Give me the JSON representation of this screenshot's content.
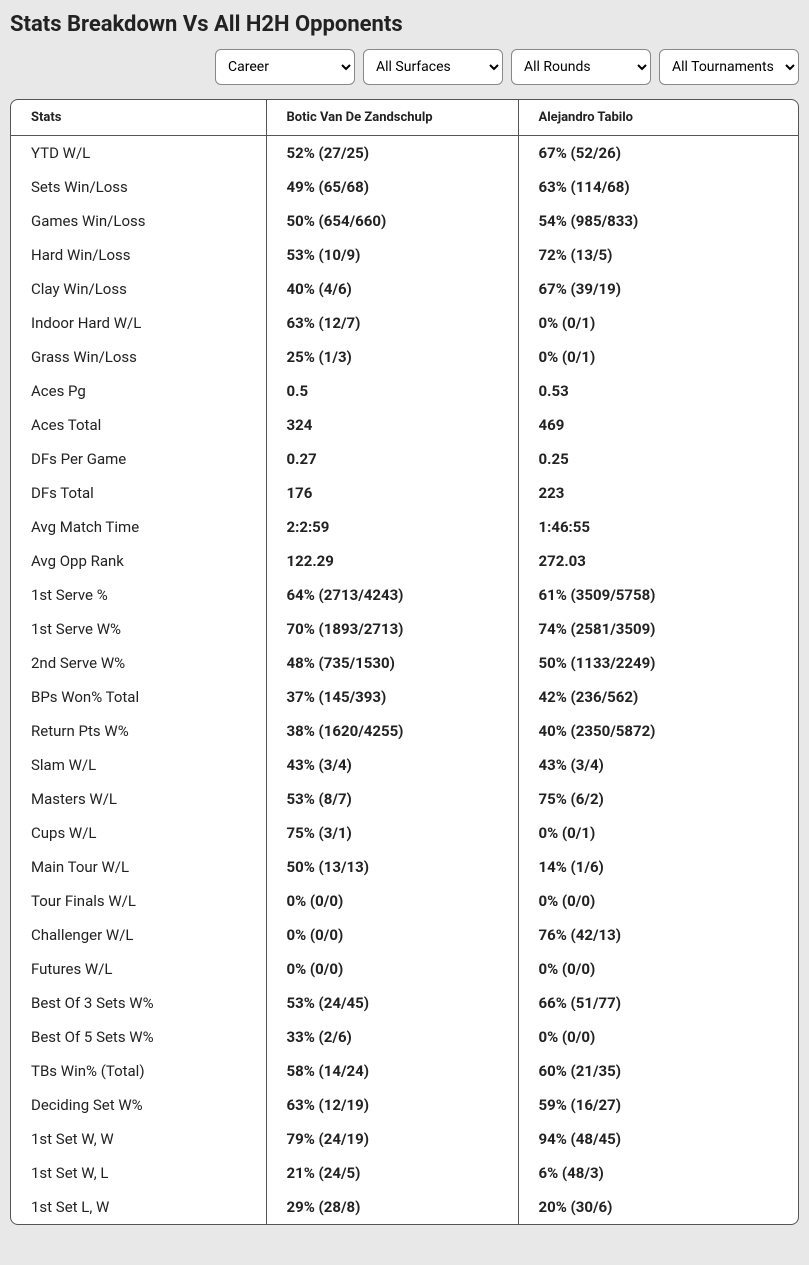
{
  "title": "Stats Breakdown Vs All H2H Opponents",
  "filters": {
    "period": "Career",
    "surface": "All Surfaces",
    "round": "All Rounds",
    "tournament": "All Tournaments"
  },
  "columns": {
    "stats": "Stats",
    "player1": "Botic Van De Zandschulp",
    "player2": "Alejandro Tabilo"
  },
  "rows": [
    {
      "label": "YTD W/L",
      "p1": "52% (27/25)",
      "p2": "67% (52/26)"
    },
    {
      "label": "Sets Win/Loss",
      "p1": "49% (65/68)",
      "p2": "63% (114/68)"
    },
    {
      "label": "Games Win/Loss",
      "p1": "50% (654/660)",
      "p2": "54% (985/833)"
    },
    {
      "label": "Hard Win/Loss",
      "p1": "53% (10/9)",
      "p2": "72% (13/5)"
    },
    {
      "label": "Clay Win/Loss",
      "p1": "40% (4/6)",
      "p2": "67% (39/19)"
    },
    {
      "label": "Indoor Hard W/L",
      "p1": "63% (12/7)",
      "p2": "0% (0/1)"
    },
    {
      "label": "Grass Win/Loss",
      "p1": "25% (1/3)",
      "p2": "0% (0/1)"
    },
    {
      "label": "Aces Pg",
      "p1": "0.5",
      "p2": "0.53"
    },
    {
      "label": "Aces Total",
      "p1": "324",
      "p2": "469"
    },
    {
      "label": "DFs Per Game",
      "p1": "0.27",
      "p2": "0.25"
    },
    {
      "label": "DFs Total",
      "p1": "176",
      "p2": "223"
    },
    {
      "label": "Avg Match Time",
      "p1": "2:2:59",
      "p2": "1:46:55"
    },
    {
      "label": "Avg Opp Rank",
      "p1": "122.29",
      "p2": "272.03"
    },
    {
      "label": "1st Serve %",
      "p1": "64% (2713/4243)",
      "p2": "61% (3509/5758)"
    },
    {
      "label": "1st Serve W%",
      "p1": "70% (1893/2713)",
      "p2": "74% (2581/3509)"
    },
    {
      "label": "2nd Serve W%",
      "p1": "48% (735/1530)",
      "p2": "50% (1133/2249)"
    },
    {
      "label": "BPs Won% Total",
      "p1": "37% (145/393)",
      "p2": "42% (236/562)"
    },
    {
      "label": "Return Pts W%",
      "p1": "38% (1620/4255)",
      "p2": "40% (2350/5872)"
    },
    {
      "label": "Slam W/L",
      "p1": "43% (3/4)",
      "p2": "43% (3/4)"
    },
    {
      "label": "Masters W/L",
      "p1": "53% (8/7)",
      "p2": "75% (6/2)"
    },
    {
      "label": "Cups W/L",
      "p1": "75% (3/1)",
      "p2": "0% (0/1)"
    },
    {
      "label": "Main Tour W/L",
      "p1": "50% (13/13)",
      "p2": "14% (1/6)"
    },
    {
      "label": "Tour Finals W/L",
      "p1": "0% (0/0)",
      "p2": "0% (0/0)"
    },
    {
      "label": "Challenger W/L",
      "p1": "0% (0/0)",
      "p2": "76% (42/13)"
    },
    {
      "label": "Futures W/L",
      "p1": "0% (0/0)",
      "p2": "0% (0/0)"
    },
    {
      "label": "Best Of 3 Sets W%",
      "p1": "53% (24/45)",
      "p2": "66% (51/77)"
    },
    {
      "label": "Best Of 5 Sets W%",
      "p1": "33% (2/6)",
      "p2": "0% (0/0)"
    },
    {
      "label": "TBs Win% (Total)",
      "p1": "58% (14/24)",
      "p2": "60% (21/35)"
    },
    {
      "label": "Deciding Set W%",
      "p1": "63% (12/19)",
      "p2": "59% (16/27)"
    },
    {
      "label": "1st Set W, W",
      "p1": "79% (24/19)",
      "p2": "94% (48/45)"
    },
    {
      "label": "1st Set W, L",
      "p1": "21% (24/5)",
      "p2": "6% (48/3)"
    },
    {
      "label": "1st Set L, W",
      "p1": "29% (28/8)",
      "p2": "20% (30/6)"
    }
  ],
  "colors": {
    "page_bg": "#e8e8e8",
    "table_bg": "#ffffff",
    "border": "#555555",
    "text": "#222222"
  }
}
